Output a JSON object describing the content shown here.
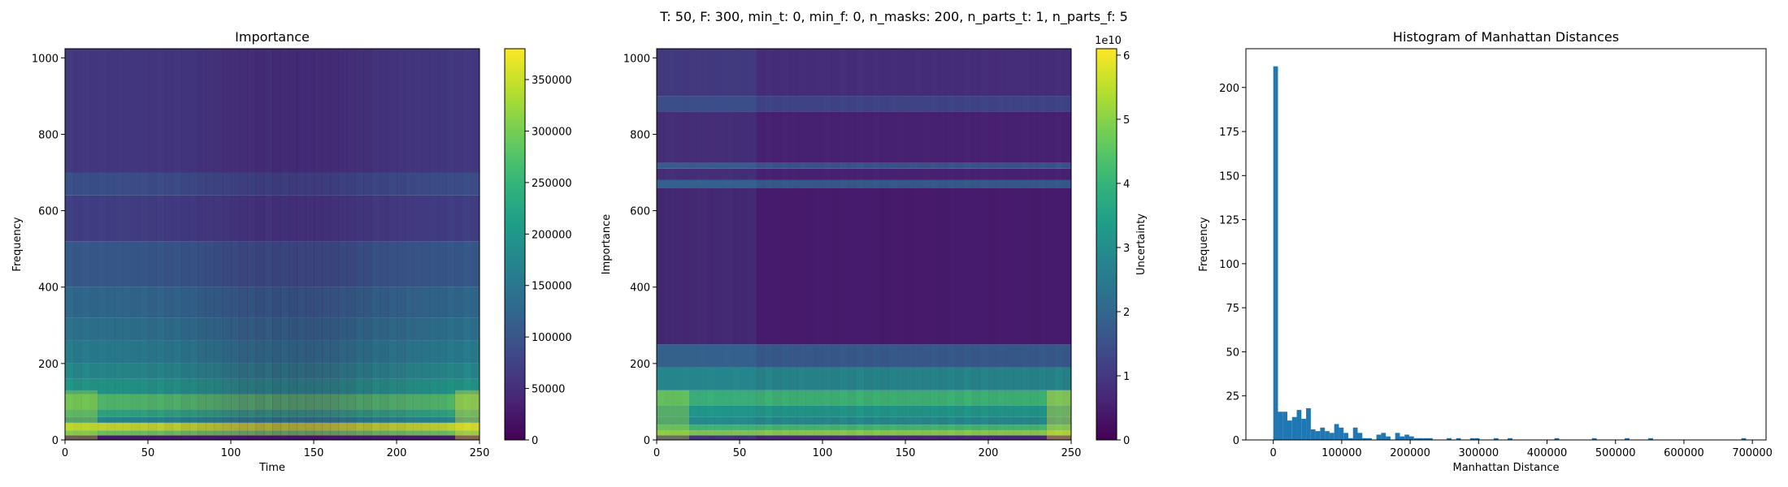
{
  "suptitle": "T: 50, F: 300, min_t: 0, min_f: 0, n_masks: 200, n_parts_t: 1, n_parts_f: 5",
  "chart_data": [
    {
      "type": "heatmap",
      "title": "Importance",
      "xlabel": "Time",
      "ylabel": "Frequency",
      "xlim": [
        0,
        250
      ],
      "ylim": [
        0,
        1024
      ],
      "xticks": [
        0,
        50,
        100,
        150,
        200,
        250
      ],
      "yticks": [
        0,
        200,
        400,
        600,
        800,
        1000
      ],
      "colormap": "viridis",
      "colorbar": {
        "label": "Importance",
        "range": [
          0,
          380000
        ],
        "ticks": [
          0,
          50000,
          100000,
          150000,
          200000,
          250000,
          300000,
          350000
        ],
        "offset_text": ""
      },
      "bands": [
        {
          "f": [
            0,
            12
          ],
          "v": 0.08
        },
        {
          "f": [
            12,
            25
          ],
          "v": 0.78
        },
        {
          "f": [
            25,
            45
          ],
          "v": 0.92
        },
        {
          "f": [
            45,
            60
          ],
          "v": 0.5
        },
        {
          "f": [
            60,
            80
          ],
          "v": 0.62
        },
        {
          "f": [
            80,
            120
          ],
          "v": 0.72
        },
        {
          "f": [
            120,
            160
          ],
          "v": 0.55
        },
        {
          "f": [
            160,
            200
          ],
          "v": 0.5
        },
        {
          "f": [
            200,
            260
          ],
          "v": 0.45
        },
        {
          "f": [
            260,
            320
          ],
          "v": 0.4
        },
        {
          "f": [
            320,
            400
          ],
          "v": 0.36
        },
        {
          "f": [
            400,
            520
          ],
          "v": 0.3
        },
        {
          "f": [
            520,
            640
          ],
          "v": 0.2
        },
        {
          "f": [
            640,
            700
          ],
          "v": 0.26
        },
        {
          "f": [
            700,
            1024
          ],
          "v": 0.18
        }
      ]
    },
    {
      "type": "heatmap",
      "title": "",
      "xlabel": "",
      "ylabel": "",
      "xlim": [
        0,
        250
      ],
      "ylim": [
        0,
        1024
      ],
      "xticks": [
        0,
        50,
        100,
        150,
        200,
        250
      ],
      "yticks": [
        0,
        200,
        400,
        600,
        800,
        1000
      ],
      "colormap": "viridis",
      "colorbar": {
        "label": "Uncertainty",
        "range": [
          0,
          6.1
        ],
        "ticks": [
          0,
          1,
          2,
          3,
          4,
          5,
          6
        ],
        "offset_text": "1e10"
      },
      "bands": [
        {
          "f": [
            0,
            12
          ],
          "v": 0.12
        },
        {
          "f": [
            12,
            25
          ],
          "v": 0.82
        },
        {
          "f": [
            25,
            40
          ],
          "v": 0.7
        },
        {
          "f": [
            40,
            60
          ],
          "v": 0.5
        },
        {
          "f": [
            60,
            90
          ],
          "v": 0.55
        },
        {
          "f": [
            90,
            130
          ],
          "v": 0.68
        },
        {
          "f": [
            130,
            190
          ],
          "v": 0.48
        },
        {
          "f": [
            190,
            250
          ],
          "v": 0.3
        },
        {
          "f": [
            250,
            660
          ],
          "v": 0.08
        },
        {
          "f": [
            660,
            680
          ],
          "v": 0.3
        },
        {
          "f": [
            680,
            710
          ],
          "v": 0.1
        },
        {
          "f": [
            710,
            725
          ],
          "v": 0.28
        },
        {
          "f": [
            725,
            860
          ],
          "v": 0.1
        },
        {
          "f": [
            860,
            900
          ],
          "v": 0.22
        },
        {
          "f": [
            900,
            1024
          ],
          "v": 0.14
        }
      ]
    },
    {
      "type": "bar",
      "title": "Histogram of Manhattan Distances",
      "xlabel": "Manhattan Distance",
      "ylabel": "Frequency",
      "xlim": [
        -40000,
        720000
      ],
      "ylim": [
        0,
        222
      ],
      "xticks": [
        0,
        100000,
        200000,
        300000,
        400000,
        500000,
        600000,
        700000
      ],
      "yticks": [
        0,
        25,
        50,
        75,
        100,
        125,
        150,
        175,
        200
      ],
      "color": "#1f77b4",
      "bin_width": 6850,
      "bins": [
        [
          0,
          212
        ],
        [
          6850,
          16
        ],
        [
          13700,
          16
        ],
        [
          20550,
          11
        ],
        [
          27400,
          13
        ],
        [
          34250,
          17
        ],
        [
          41100,
          12
        ],
        [
          47950,
          18
        ],
        [
          54800,
          6
        ],
        [
          61650,
          5
        ],
        [
          68500,
          7
        ],
        [
          75350,
          5
        ],
        [
          82200,
          4
        ],
        [
          89050,
          9
        ],
        [
          95900,
          7
        ],
        [
          102750,
          4
        ],
        [
          109600,
          1
        ],
        [
          116450,
          7
        ],
        [
          123300,
          4
        ],
        [
          130150,
          1
        ],
        [
          137000,
          1
        ],
        [
          150700,
          3
        ],
        [
          157550,
          4
        ],
        [
          164400,
          2
        ],
        [
          178100,
          4
        ],
        [
          184950,
          2
        ],
        [
          191800,
          3
        ],
        [
          198650,
          2
        ],
        [
          205500,
          1
        ],
        [
          212350,
          1
        ],
        [
          219200,
          1
        ],
        [
          226050,
          1
        ],
        [
          253450,
          1
        ],
        [
          267150,
          1
        ],
        [
          287700,
          1
        ],
        [
          294550,
          1
        ],
        [
          322000,
          1
        ],
        [
          342500,
          1
        ],
        [
          410800,
          1
        ],
        [
          465600,
          1
        ],
        [
          513500,
          1
        ],
        [
          548000,
          1
        ],
        [
          684000,
          1
        ]
      ]
    }
  ]
}
